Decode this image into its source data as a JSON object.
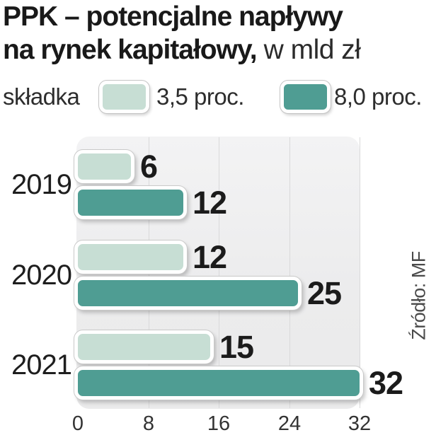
{
  "title": {
    "line1": "PPK – potencjalne napływy",
    "line2_bold": "na rynek kapitałowy,",
    "line2_light": "w mld zł"
  },
  "legend": {
    "label": "składka",
    "items": [
      {
        "label": "3,5 proc.",
        "color": "#c7ded4"
      },
      {
        "label": "8,0 proc.",
        "color": "#4f9d93"
      }
    ]
  },
  "source": "Źródło: MF",
  "colors": {
    "panel_background": "#ededee",
    "gridline": "#d9d9da",
    "text_dark": "#1b1b1b",
    "light_series": "#c7ded4",
    "dark_series": "#4f9d93"
  },
  "chart_data": {
    "type": "bar",
    "orientation": "horizontal",
    "title": "PPK – potencjalne napływy na rynek kapitałowy, w mld zł",
    "categories": [
      "2019",
      "2020",
      "2021"
    ],
    "series": [
      {
        "name": "3,5 proc.",
        "color": "#c7ded4",
        "values": [
          6,
          12,
          15
        ]
      },
      {
        "name": "8,0 proc.",
        "color": "#4f9d93",
        "values": [
          12,
          25,
          32
        ]
      }
    ],
    "xlabel": "",
    "ylabel": "",
    "xlim": [
      0,
      32
    ],
    "xticks": [
      0,
      8,
      16,
      24,
      32
    ],
    "unit": "mld zł",
    "grid": true,
    "legend_position": "top",
    "value_labels": true,
    "source": "MF"
  }
}
